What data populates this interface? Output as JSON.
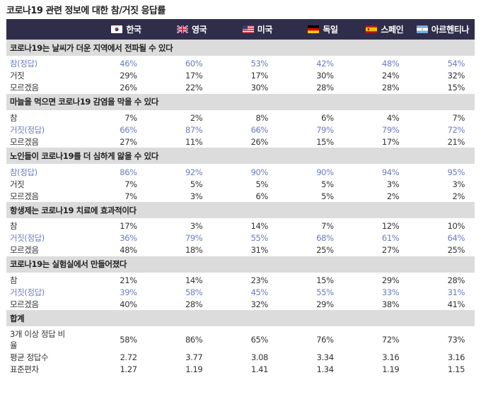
{
  "title": "코로나19 관련 정보에 대한 참/거짓 응답률",
  "countries": [
    {
      "name": "한국",
      "flag": "korea"
    },
    {
      "name": "영국",
      "flag": "uk"
    },
    {
      "name": "미국",
      "flag": "usa"
    },
    {
      "name": "독일",
      "flag": "germany"
    },
    {
      "name": "스페인",
      "flag": "spain"
    },
    {
      "name": "아르헨티나",
      "flag": "argentina"
    }
  ],
  "sections": [
    {
      "title": "코로나19는 날씨가 더운 지역에서 전파될 수 있다",
      "rows": [
        {
          "label": "참(정답)",
          "correct": true,
          "values": [
            "46%",
            "60%",
            "53%",
            "42%",
            "48%",
            "54%"
          ]
        },
        {
          "label": "거짓",
          "correct": false,
          "values": [
            "29%",
            "17%",
            "17%",
            "30%",
            "24%",
            "32%"
          ]
        },
        {
          "label": "모르겠음",
          "correct": false,
          "values": [
            "26%",
            "22%",
            "30%",
            "28%",
            "28%",
            "15%"
          ]
        }
      ]
    },
    {
      "title": "마늘을 먹으면 코로나19 감염을 막을 수 있다",
      "rows": [
        {
          "label": "참",
          "correct": false,
          "values": [
            "7%",
            "2%",
            "8%",
            "6%",
            "4%",
            "7%"
          ]
        },
        {
          "label": "거짓(정답)",
          "correct": true,
          "values": [
            "66%",
            "87%",
            "66%",
            "79%",
            "79%",
            "72%"
          ]
        },
        {
          "label": "모르겠음",
          "correct": false,
          "values": [
            "27%",
            "11%",
            "26%",
            "15%",
            "17%",
            "21%"
          ]
        }
      ]
    },
    {
      "title": "노인들이 코로나19를 더 심하게 앓을 수 있다",
      "rows": [
        {
          "label": "참(정답)",
          "correct": true,
          "values": [
            "86%",
            "92%",
            "90%",
            "90%",
            "94%",
            "95%"
          ]
        },
        {
          "label": "거짓",
          "correct": false,
          "values": [
            "7%",
            "5%",
            "5%",
            "5%",
            "3%",
            "3%"
          ]
        },
        {
          "label": "모르겠음",
          "correct": false,
          "values": [
            "7%",
            "3%",
            "6%",
            "5%",
            "2%",
            "2%"
          ]
        }
      ]
    },
    {
      "title": "항생제는 코로나19 치료에 효과적이다",
      "rows": [
        {
          "label": "참",
          "correct": false,
          "values": [
            "17%",
            "3%",
            "14%",
            "7%",
            "12%",
            "10%"
          ]
        },
        {
          "label": "거짓(정답)",
          "correct": true,
          "values": [
            "36%",
            "79%",
            "55%",
            "68%",
            "61%",
            "64%"
          ]
        },
        {
          "label": "모르겠음",
          "correct": false,
          "values": [
            "48%",
            "18%",
            "31%",
            "25%",
            "27%",
            "25%"
          ]
        }
      ]
    },
    {
      "title": "코로나19는 실험실에서 만들어졌다",
      "rows": [
        {
          "label": "참",
          "correct": false,
          "values": [
            "21%",
            "14%",
            "23%",
            "15%",
            "29%",
            "28%"
          ]
        },
        {
          "label": "거짓(정답)",
          "correct": true,
          "values": [
            "39%",
            "58%",
            "45%",
            "55%",
            "33%",
            "31%"
          ]
        },
        {
          "label": "모르겠음",
          "correct": false,
          "values": [
            "40%",
            "28%",
            "32%",
            "29%",
            "38%",
            "41%"
          ]
        }
      ]
    },
    {
      "title": "합계",
      "rows": [
        {
          "label": "3개 이상 정답 비율",
          "correct": false,
          "values": [
            "58%",
            "86%",
            "65%",
            "76%",
            "72%",
            "73%"
          ]
        },
        {
          "label": "평균 정답수",
          "correct": false,
          "values": [
            "2.72",
            "3.77",
            "3.08",
            "3.34",
            "3.16",
            "3.16"
          ]
        },
        {
          "label": "표준편차",
          "correct": false,
          "values": [
            "1.27",
            "1.19",
            "1.41",
            "1.34",
            "1.19",
            "1.15"
          ]
        }
      ]
    }
  ],
  "colors": {
    "header_bg": "#2f2d4a",
    "section_bg": "#dcdcdc",
    "correct_text": "#6a7bc2"
  }
}
